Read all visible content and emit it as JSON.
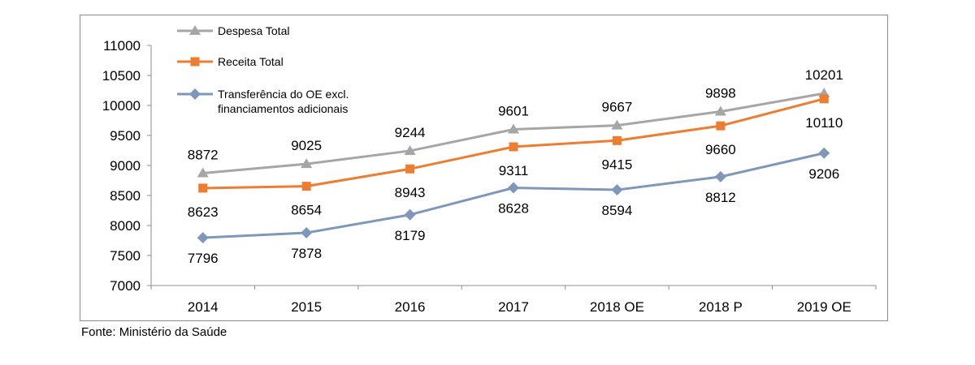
{
  "chart_data": {
    "type": "line",
    "categories": [
      "2014",
      "2015",
      "2016",
      "2017",
      "2018 OE",
      "2018 P",
      "2019 OE"
    ],
    "ylim": [
      7000,
      11000
    ],
    "yticks": [
      7000,
      7500,
      8000,
      8500,
      9000,
      9500,
      10000,
      10500,
      11000
    ],
    "grid": false,
    "legend_position": "top-left",
    "series": [
      {
        "name": "Despesa Total",
        "color": "#a6a6a6",
        "marker": "triangle",
        "values": [
          8872,
          9025,
          9244,
          9601,
          9667,
          9898,
          10201
        ],
        "label_position": "above"
      },
      {
        "name": "Receita Total",
        "color": "#ed7d31",
        "marker": "square",
        "values": [
          8623,
          8654,
          8943,
          9311,
          9415,
          9660,
          10110
        ],
        "label_position": "below"
      },
      {
        "name": "Transferência do OE  excl.",
        "name_line2": "financiamentos adicionais",
        "color": "#7f97b8",
        "marker": "diamond",
        "values": [
          7796,
          7878,
          8179,
          8628,
          8594,
          8812,
          9206
        ],
        "label_position": "below"
      }
    ]
  },
  "source": "Fonte: Ministério da Saúde"
}
